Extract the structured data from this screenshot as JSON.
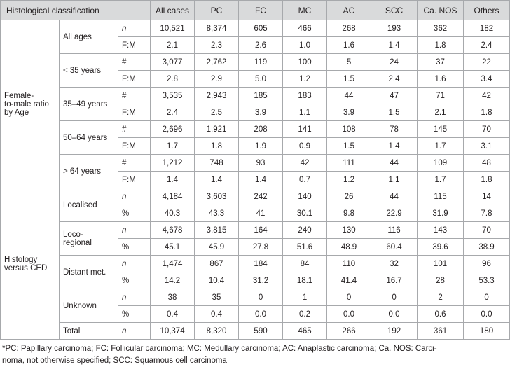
{
  "table": {
    "headers": [
      "Histological classification",
      "All cases",
      "PC",
      "FC",
      "MC",
      "AC",
      "SCC",
      "Ca. NOS",
      "Others"
    ],
    "groups": [
      {
        "label": "Female-to-male ratio by Age",
        "label_lines": [
          "Female-",
          "to-male ratio",
          "by Age"
        ],
        "subgroups": [
          {
            "label": "All ages",
            "rows": [
              {
                "unit": "n",
                "italic": true,
                "values": [
                  "10,521",
                  "8,374",
                  "605",
                  "466",
                  "268",
                  "193",
                  "362",
                  "182"
                ]
              },
              {
                "unit": "F:M",
                "italic": false,
                "values": [
                  "2.1",
                  "2.3",
                  "2.6",
                  "1.0",
                  "1.6",
                  "1.4",
                  "1.8",
                  "2.4"
                ]
              }
            ]
          },
          {
            "label": "< 35 years",
            "rows": [
              {
                "unit": "#",
                "italic": false,
                "values": [
                  "3,077",
                  "2,762",
                  "119",
                  "100",
                  "5",
                  "24",
                  "37",
                  "22"
                ]
              },
              {
                "unit": "F:M",
                "italic": false,
                "values": [
                  "2.8",
                  "2.9",
                  "5.0",
                  "1.2",
                  "1.5",
                  "2.4",
                  "1.6",
                  "3.4"
                ]
              }
            ]
          },
          {
            "label": "35–49 years",
            "rows": [
              {
                "unit": "#",
                "italic": false,
                "values": [
                  "3,535",
                  "2,943",
                  "185",
                  "183",
                  "44",
                  "47",
                  "71",
                  "42"
                ]
              },
              {
                "unit": "F:M",
                "italic": false,
                "values": [
                  "2.4",
                  "2.5",
                  "3.9",
                  "1.1",
                  "3.9",
                  "1.5",
                  "2.1",
                  "1.8"
                ]
              }
            ]
          },
          {
            "label": "50–64 years",
            "rows": [
              {
                "unit": "#",
                "italic": false,
                "values": [
                  "2,696",
                  "1,921",
                  "208",
                  "141",
                  "108",
                  "78",
                  "145",
                  "70"
                ]
              },
              {
                "unit": "F:M",
                "italic": false,
                "values": [
                  "1.7",
                  "1.8",
                  "1.9",
                  "0.9",
                  "1.5",
                  "1.4",
                  "1.7",
                  "3.1"
                ]
              }
            ]
          },
          {
            "label": "> 64 years",
            "rows": [
              {
                "unit": "#",
                "italic": false,
                "values": [
                  "1,212",
                  "748",
                  "93",
                  "42",
                  "111",
                  "44",
                  "109",
                  "48"
                ]
              },
              {
                "unit": "F:M",
                "italic": false,
                "values": [
                  "1.4",
                  "1.4",
                  "1.4",
                  "0.7",
                  "1.2",
                  "1.1",
                  "1.7",
                  "1.8"
                ]
              }
            ]
          }
        ]
      },
      {
        "label": "Histology versus CED",
        "label_lines": [
          "Histology",
          "versus CED"
        ],
        "subgroups": [
          {
            "label": "Localised",
            "rows": [
              {
                "unit": "n",
                "italic": true,
                "values": [
                  "4,184",
                  "3,603",
                  "242",
                  "140",
                  "26",
                  "44",
                  "115",
                  "14"
                ]
              },
              {
                "unit": "%",
                "italic": false,
                "values": [
                  "40.3",
                  "43.3",
                  "41",
                  "30.1",
                  "9.8",
                  "22.9",
                  "31.9",
                  "7.8"
                ]
              }
            ]
          },
          {
            "label": "Loco-regional",
            "label_lines": [
              "Loco-",
              "regional"
            ],
            "rows": [
              {
                "unit": "n",
                "italic": true,
                "values": [
                  "4,678",
                  "3,815",
                  "164",
                  "240",
                  "130",
                  "116",
                  "143",
                  "70"
                ]
              },
              {
                "unit": "%",
                "italic": false,
                "values": [
                  "45.1",
                  "45.9",
                  "27.8",
                  "51.6",
                  "48.9",
                  "60.4",
                  "39.6",
                  "38.9"
                ]
              }
            ]
          },
          {
            "label": "Distant met.",
            "rows": [
              {
                "unit": "n",
                "italic": true,
                "values": [
                  "1,474",
                  "867",
                  "184",
                  "84",
                  "110",
                  "32",
                  "101",
                  "96"
                ]
              },
              {
                "unit": "%",
                "italic": false,
                "values": [
                  "14.2",
                  "10.4",
                  "31.2",
                  "18.1",
                  "41.4",
                  "16.7",
                  "28",
                  "53.3"
                ]
              }
            ]
          },
          {
            "label": "Unknown",
            "rows": [
              {
                "unit": "n",
                "italic": true,
                "values": [
                  "38",
                  "35",
                  "0",
                  "1",
                  "0",
                  "0",
                  "2",
                  "0"
                ]
              },
              {
                "unit": "%",
                "italic": false,
                "values": [
                  "0.4",
                  "0.4",
                  "0.0",
                  "0.2",
                  "0.0",
                  "0.0",
                  "0.6",
                  "0.0"
                ]
              }
            ]
          },
          {
            "label": "Total",
            "rows": [
              {
                "unit": "n",
                "italic": true,
                "values": [
                  "10,374",
                  "8,320",
                  "590",
                  "465",
                  "266",
                  "192",
                  "361",
                  "180"
                ]
              }
            ]
          }
        ]
      }
    ]
  },
  "footnote": {
    "line1": "*PC: Papillary carcinoma; FC: Follicular carcinoma; MC: Medullary carcinoma; AC: Anaplastic carcinoma; Ca. NOS: Carci-",
    "line2": "noma, not otherwise specified; SCC: Squamous cell carcinoma"
  }
}
